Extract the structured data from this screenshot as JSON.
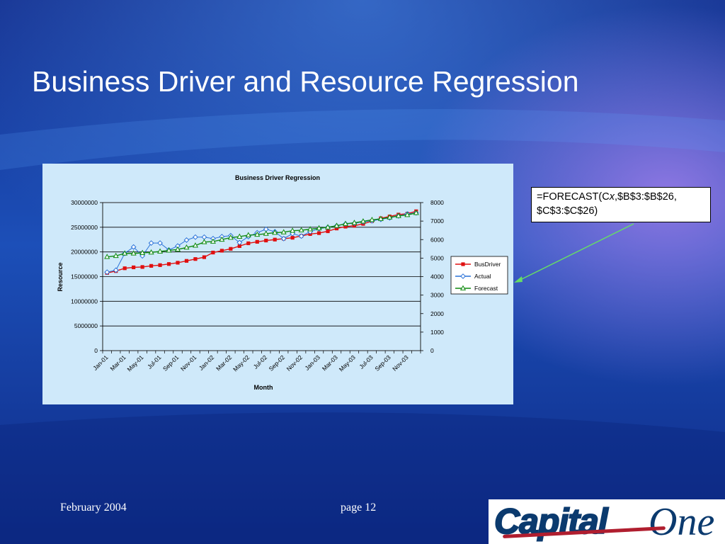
{
  "slide": {
    "title": "Business Driver and Resource Regression",
    "formula_line1": "=FORECAST(Cx,$B$3:$B$26,",
    "formula_line2": "$C$3:$C$26)",
    "footer_date": "February 2004",
    "footer_page": "page 12",
    "logo_text_part1": "Capital",
    "logo_text_part2": "One",
    "colors": {
      "title": "#ffffff",
      "chart_bg": "#cfe9fa",
      "arrow": "#66dd66"
    }
  },
  "chart_data": {
    "type": "line",
    "title": "Business Driver Regression",
    "xlabel": "Month",
    "ylabel": "Resource",
    "ylim": [
      0,
      30000000
    ],
    "y_ticks": [
      "30000000",
      "25000000",
      "20000000",
      "15000000",
      "10000000",
      "5000000",
      "0"
    ],
    "y2lim": [
      0,
      8000
    ],
    "y2_ticks": [
      "8000",
      "7000",
      "6000",
      "5000",
      "4000",
      "3000",
      "2000",
      "1000",
      "0"
    ],
    "grid": "horizontal",
    "legend_position": "right",
    "categories": [
      "Jan-01",
      "Feb-01",
      "Mar-01",
      "Apr-01",
      "May-01",
      "Jun-01",
      "Jul-01",
      "Aug-01",
      "Sep-01",
      "Oct-01",
      "Nov-01",
      "Dec-01",
      "Jan-02",
      "Feb-02",
      "Mar-02",
      "Apr-02",
      "May-02",
      "Jun-02",
      "Jul-02",
      "Aug-02",
      "Sep-02",
      "Oct-02",
      "Nov-02",
      "Dec-02",
      "Jan-03",
      "Feb-03",
      "Mar-03",
      "Apr-03",
      "May-03",
      "Jun-03",
      "Jul-03",
      "Aug-03",
      "Sep-03",
      "Oct-03",
      "Nov-03",
      "Dec-03"
    ],
    "tick_labels": [
      "Jan-01",
      "Mar-01",
      "May-01",
      "Jul-01",
      "Sep-01",
      "Nov-01",
      "Jan-02",
      "Mar-02",
      "May-02",
      "Jul-02",
      "Sep-02",
      "Nov-02",
      "Jan-03",
      "Mar-03",
      "May-03",
      "Jul-03",
      "Sep-03",
      "Nov-03"
    ],
    "series": [
      {
        "name": "BusDriver",
        "axis": "secondary",
        "color": "#e01010",
        "marker": "square",
        "values": [
          4200,
          4300,
          4450,
          4500,
          4520,
          4580,
          4620,
          4680,
          4750,
          4850,
          4950,
          5050,
          5300,
          5400,
          5500,
          5650,
          5800,
          5880,
          5950,
          6000,
          6050,
          6100,
          6200,
          6300,
          6350,
          6450,
          6600,
          6700,
          6750,
          6850,
          7000,
          7150,
          7250,
          7350,
          7400,
          7530
        ]
      },
      {
        "name": "Actual",
        "axis": "primary",
        "color": "#2a72d8",
        "marker": "diamond",
        "values": [
          15900000,
          16300000,
          19700000,
          21000000,
          19200000,
          21800000,
          21800000,
          20400000,
          21200000,
          22400000,
          23000000,
          23000000,
          22700000,
          23100000,
          23300000,
          21900000,
          23100000,
          23900000,
          24600000,
          24100000,
          22700000,
          23700000,
          23200000,
          24100000,
          24700000,
          25000000,
          25300000,
          25700000,
          25800000,
          26100000,
          26300000,
          26600000,
          26900000,
          27300000,
          27700000,
          27900000
        ]
      },
      {
        "name": "Forecast",
        "axis": "primary",
        "color": "#0f8a0f",
        "marker": "triangle",
        "values": [
          19000000,
          19200000,
          19700000,
          19700000,
          19800000,
          19900000,
          20100000,
          20300000,
          20500000,
          20900000,
          21300000,
          22000000,
          22100000,
          22500000,
          22900000,
          23100000,
          23400000,
          23500000,
          23700000,
          23900000,
          24000000,
          24300000,
          24400000,
          24600000,
          24800000,
          25000000,
          25300000,
          25700000,
          25900000,
          26200000,
          26500000,
          26700000,
          27000000,
          27300000,
          27500000,
          27900000
        ]
      }
    ]
  }
}
